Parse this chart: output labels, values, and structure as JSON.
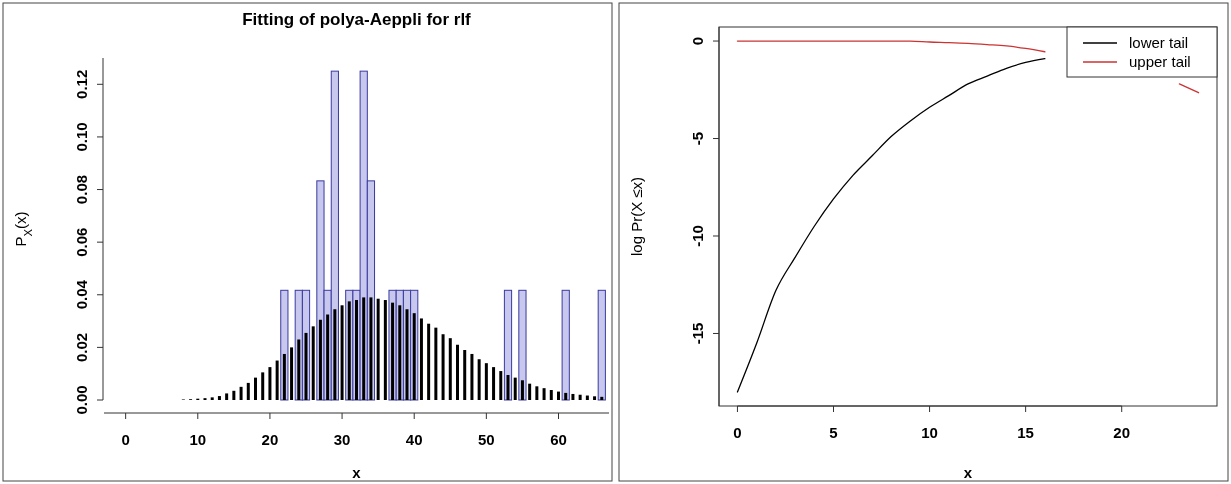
{
  "chart_data": [
    {
      "type": "histogram",
      "title": "Fitting of polya-Aeppli for rlf",
      "xlabel": "x",
      "ylabel": "P$_{X}$(x)",
      "bins": [
        -0.5,
        0.5,
        1.5,
        2.5,
        3.5,
        4.5,
        5.5,
        6.5,
        7.5,
        8.5,
        9.5,
        10.5,
        11.5,
        12.5,
        13.5,
        14.5,
        15.5,
        16.5,
        17.5,
        18.5,
        19.5,
        20.5,
        21.5,
        22.5,
        23.5,
        24.5,
        25.5,
        26.5,
        27.5,
        28.5,
        29.5,
        30.5,
        31.5,
        32.5,
        33.5,
        34.5,
        35.5,
        36.5,
        37.5,
        38.5,
        39.5,
        40.5,
        41.5,
        42.5,
        43.5,
        44.5,
        45.5,
        46.5,
        47.5,
        48.5,
        49.5,
        50.5,
        51.5,
        52.5,
        53.5,
        54.5,
        55.5,
        56.5,
        57.5,
        58.5,
        59.5,
        60.5,
        61.5,
        62.5,
        63.5,
        64.5,
        65.5,
        66.5
      ],
      "series": [
        {
          "type": "histogram",
          "color": "#c8c8ee",
          "values": [
            0,
            0,
            0,
            0,
            0,
            0,
            0,
            0,
            0,
            0,
            0,
            0,
            0,
            0,
            0,
            0,
            0,
            0,
            0,
            0,
            0,
            0,
            0.0417,
            0,
            0.0417,
            0.0417,
            0,
            0.0833,
            0.0417,
            0.125,
            0,
            0.0417,
            0.0417,
            0.125,
            0.0833,
            0,
            0,
            0.0417,
            0.0417,
            0.0417,
            0.0417,
            0,
            0,
            0,
            0,
            0,
            0,
            0,
            0,
            0,
            0,
            0,
            0,
            0.0417,
            0,
            0.0417,
            0,
            0,
            0,
            0,
            0,
            0.0417,
            0,
            0,
            0,
            0,
            0.0417
          ]
        },
        {
          "type": "bar",
          "color": "#000000",
          "x": [
            0,
            1,
            2,
            3,
            4,
            5,
            6,
            7,
            8,
            9,
            10,
            11,
            12,
            13,
            14,
            15,
            16,
            17,
            18,
            19,
            20,
            21,
            22,
            23,
            24,
            25,
            26,
            27,
            28,
            29,
            30,
            31,
            32,
            33,
            34,
            35,
            36,
            37,
            38,
            39,
            40,
            41,
            42,
            43,
            44,
            45,
            46,
            47,
            48,
            49,
            50,
            51,
            52,
            53,
            54,
            55,
            56,
            57,
            58,
            59,
            60,
            61,
            62,
            63,
            64,
            65,
            66
          ],
          "values": [
            0,
            0,
            0,
            0,
            0,
            0,
            0,
            0,
            0.0002,
            0.0003,
            0.0005,
            0.0007,
            0.001,
            0.0015,
            0.0025,
            0.0035,
            0.005,
            0.0065,
            0.0085,
            0.0105,
            0.0125,
            0.015,
            0.0175,
            0.02,
            0.023,
            0.0255,
            0.028,
            0.0305,
            0.0325,
            0.0345,
            0.036,
            0.0375,
            0.038,
            0.039,
            0.039,
            0.0385,
            0.038,
            0.037,
            0.036,
            0.0345,
            0.033,
            0.031,
            0.029,
            0.0275,
            0.025,
            0.0235,
            0.021,
            0.019,
            0.0175,
            0.0155,
            0.014,
            0.0125,
            0.011,
            0.0095,
            0.0085,
            0.0075,
            0.0062,
            0.0052,
            0.0045,
            0.0038,
            0.0032,
            0.0027,
            0.0023,
            0.002,
            0.0017,
            0.0014,
            0.0012
          ]
        }
      ],
      "xlim": [
        -3,
        67
      ],
      "xticks": [
        0,
        10,
        20,
        30,
        40,
        50,
        60
      ],
      "ylim": [
        0,
        0.13
      ],
      "yticks": [
        {
          "value": 0,
          "label": "0.00"
        },
        {
          "value": 0.02,
          "label": "0.02"
        },
        {
          "value": 0.04,
          "label": "0.04"
        },
        {
          "value": 0.06,
          "label": "0.06"
        },
        {
          "value": 0.08,
          "label": "0.08"
        },
        {
          "value": 0.1,
          "label": "0.10"
        },
        {
          "value": 0.12,
          "label": "0.12"
        }
      ]
    },
    {
      "type": "line",
      "xlabel": "x",
      "ylabel": "log Pr(X ≤x)",
      "legend": "top right",
      "x": [
        0,
        1,
        2,
        3,
        4,
        5,
        6,
        7,
        8,
        9,
        10,
        11,
        12,
        13,
        14,
        15,
        16,
        17,
        18,
        19,
        20,
        21,
        22,
        23,
        24
      ],
      "series": [
        {
          "name": "lower tail",
          "color": "#000000",
          "values": [
            -18,
            -15.5,
            -12.8,
            -11.1,
            -9.5,
            -8.1,
            -6.9,
            -5.9,
            -4.9,
            -4.1,
            -3.4,
            -2.8,
            -2.2,
            -1.8,
            -1.4,
            -1.1,
            -0.9,
            null,
            null,
            null,
            null,
            null,
            null,
            null,
            null
          ]
        },
        {
          "name": "upper tail",
          "color": "#cc3333",
          "values": [
            0,
            0,
            0,
            0,
            0,
            0,
            0,
            0,
            0,
            0,
            -0.05,
            -0.08,
            -0.12,
            -0.18,
            -0.25,
            -0.38,
            -0.55,
            null,
            null,
            null,
            null,
            null,
            null,
            -2.2,
            -2.65
          ]
        }
      ],
      "xlim": [
        -0.96,
        24.96
      ],
      "xticks": [
        0,
        5,
        10,
        15,
        20
      ],
      "ylim": [
        -18.72,
        0.72
      ],
      "yticks": [
        0,
        -5,
        -10,
        -15
      ]
    }
  ]
}
